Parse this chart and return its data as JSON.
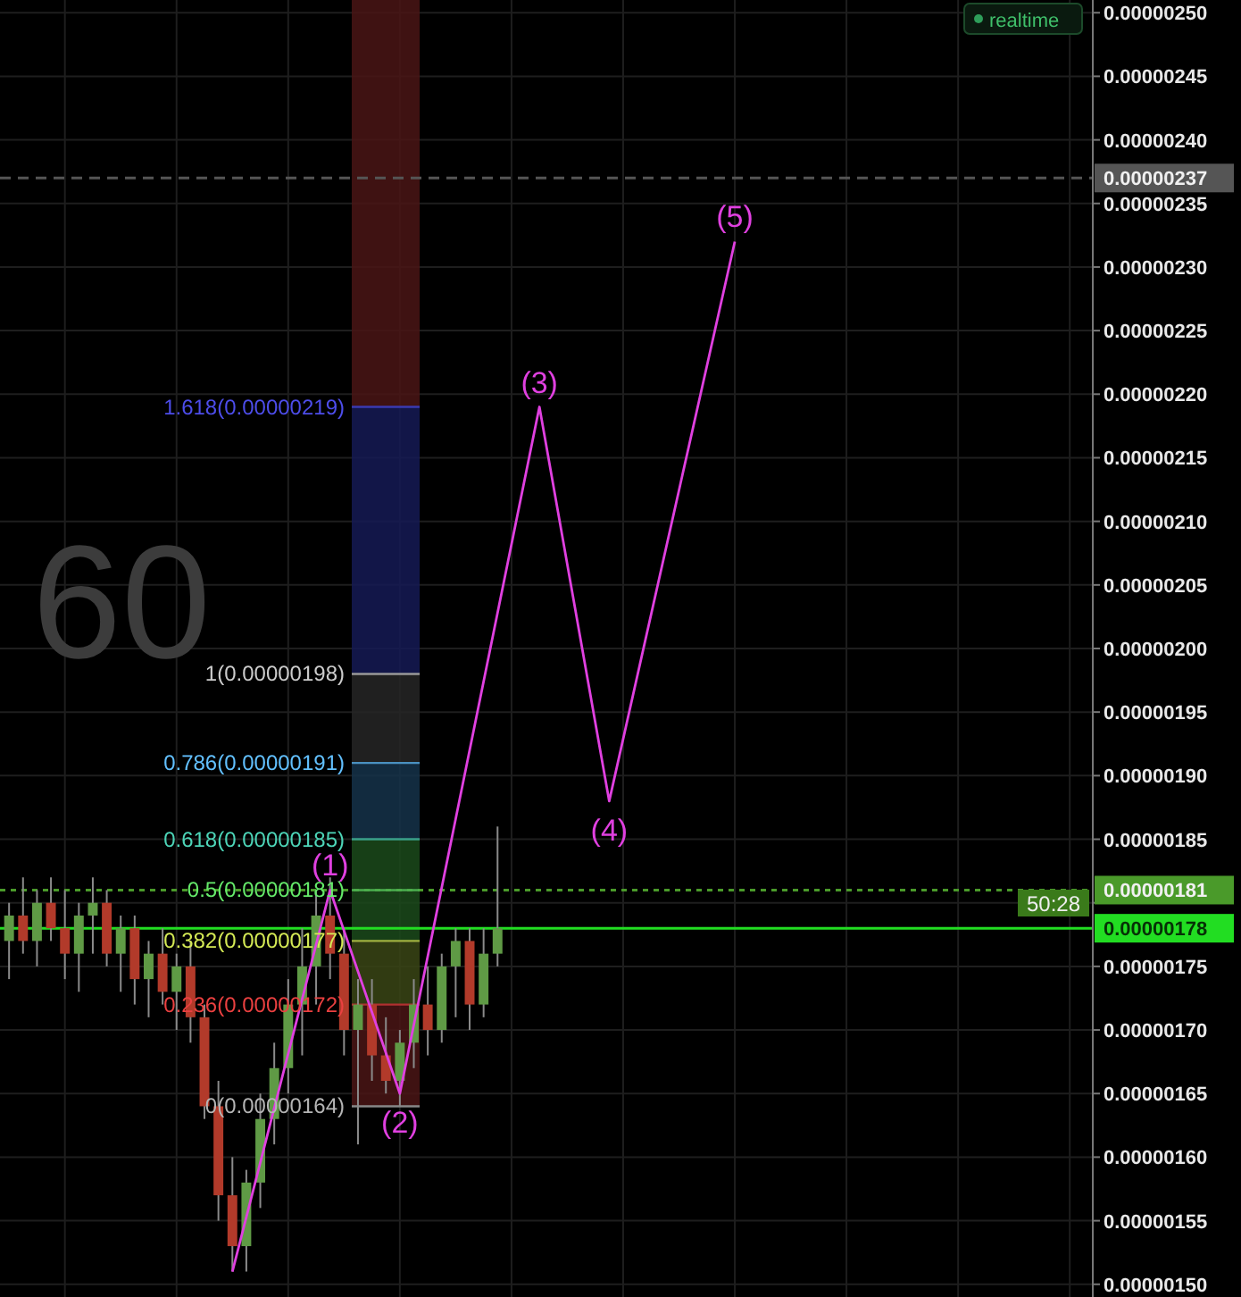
{
  "chart_data": {
    "type": "candlestick",
    "categories": [
      null,
      null,
      null,
      null,
      null,
      null,
      null,
      null,
      null,
      null,
      null,
      null,
      null,
      null,
      null,
      null,
      null,
      null,
      null,
      null,
      null,
      null,
      null,
      null,
      null,
      null,
      null,
      null,
      null,
      null,
      null,
      null,
      null,
      null,
      null,
      null,
      null,
      null,
      null,
      null,
      null,
      null,
      null,
      null,
      null,
      null,
      null,
      null,
      null,
      null,
      null,
      null,
      null,
      null,
      null,
      null,
      null,
      null,
      null,
      null,
      null,
      null,
      null,
      null,
      null,
      null,
      null,
      null,
      null,
      null,
      null,
      null,
      null,
      null,
      null,
      null,
      null,
      null
    ],
    "ohlc": [
      [
        1.77e-06,
        1.8e-06,
        1.74e-06,
        1.79e-06
      ],
      [
        1.79e-06,
        1.82e-06,
        1.76e-06,
        1.77e-06
      ],
      [
        1.77e-06,
        1.81e-06,
        1.75e-06,
        1.8e-06
      ],
      [
        1.8e-06,
        1.82e-06,
        1.77e-06,
        1.78e-06
      ],
      [
        1.78e-06,
        1.81e-06,
        1.74e-06,
        1.76e-06
      ],
      [
        1.76e-06,
        1.8e-06,
        1.73e-06,
        1.79e-06
      ],
      [
        1.79e-06,
        1.82e-06,
        1.76e-06,
        1.8e-06
      ],
      [
        1.8e-06,
        1.81e-06,
        1.75e-06,
        1.76e-06
      ],
      [
        1.76e-06,
        1.79e-06,
        1.73e-06,
        1.78e-06
      ],
      [
        1.78e-06,
        1.79e-06,
        1.72e-06,
        1.74e-06
      ],
      [
        1.74e-06,
        1.77e-06,
        1.71e-06,
        1.76e-06
      ],
      [
        1.76e-06,
        1.78e-06,
        1.72e-06,
        1.73e-06
      ],
      [
        1.73e-06,
        1.76e-06,
        1.7e-06,
        1.75e-06
      ],
      [
        1.75e-06,
        1.77e-06,
        1.69e-06,
        1.71e-06
      ],
      [
        1.71e-06,
        1.72e-06,
        1.63e-06,
        1.64e-06
      ],
      [
        1.64e-06,
        1.66e-06,
        1.55e-06,
        1.57e-06
      ],
      [
        1.57e-06,
        1.6e-06,
        1.51e-06,
        1.53e-06
      ],
      [
        1.53e-06,
        1.59e-06,
        1.51e-06,
        1.58e-06
      ],
      [
        1.58e-06,
        1.65e-06,
        1.56e-06,
        1.63e-06
      ],
      [
        1.63e-06,
        1.69e-06,
        1.61e-06,
        1.67e-06
      ],
      [
        1.67e-06,
        1.74e-06,
        1.65e-06,
        1.72e-06
      ],
      [
        1.72e-06,
        1.78e-06,
        1.68e-06,
        1.75e-06
      ],
      [
        1.75e-06,
        1.81e-06,
        1.72e-06,
        1.79e-06
      ],
      [
        1.79e-06,
        1.82e-06,
        1.74e-06,
        1.76e-06
      ],
      [
        1.76e-06,
        1.78e-06,
        1.68e-06,
        1.7e-06
      ],
      [
        1.7e-06,
        1.74e-06,
        1.61e-06,
        1.72e-06
      ],
      [
        1.72e-06,
        1.74e-06,
        1.66e-06,
        1.68e-06
      ],
      [
        1.68e-06,
        1.71e-06,
        1.65e-06,
        1.66e-06
      ],
      [
        1.66e-06,
        1.7e-06,
        1.64e-06,
        1.69e-06
      ],
      [
        1.69e-06,
        1.74e-06,
        1.67e-06,
        1.72e-06
      ],
      [
        1.72e-06,
        1.75e-06,
        1.68e-06,
        1.7e-06
      ],
      [
        1.7e-06,
        1.76e-06,
        1.69e-06,
        1.75e-06
      ],
      [
        1.75e-06,
        1.78e-06,
        1.71e-06,
        1.77e-06
      ],
      [
        1.77e-06,
        1.78e-06,
        1.7e-06,
        1.72e-06
      ],
      [
        1.72e-06,
        1.78e-06,
        1.71e-06,
        1.76e-06
      ],
      [
        1.76e-06,
        1.86e-06,
        1.75e-06,
        1.78e-06
      ],
      null,
      null,
      null,
      null,
      null,
      null,
      null,
      null,
      null,
      null,
      null,
      null,
      null,
      null,
      null,
      null,
      null,
      null,
      null,
      null,
      null,
      null,
      null,
      null,
      null,
      null,
      null,
      null,
      null,
      null,
      null,
      null,
      null,
      null,
      null,
      null,
      null,
      null,
      null,
      null,
      null,
      null
    ],
    "series": [
      {
        "type": "line",
        "color": "#e040e0",
        "values": [
          null,
          null,
          null,
          null,
          null,
          null,
          null,
          null,
          null,
          null,
          null,
          null,
          null,
          null,
          null,
          null,
          1.51e-06,
          null,
          null,
          null,
          null,
          null,
          null,
          1.81e-06,
          null,
          null,
          null,
          null,
          1.65e-06,
          null,
          null,
          null,
          null,
          null,
          null,
          null,
          null,
          null,
          2.19e-06,
          null,
          null,
          null,
          null,
          1.88e-06,
          null,
          null,
          null,
          null,
          null,
          null,
          null,
          null,
          2.32e-06,
          null,
          null,
          null,
          null,
          null,
          null,
          null,
          null,
          null,
          null,
          null,
          null,
          null,
          null,
          null,
          null,
          null,
          null,
          null,
          null,
          null,
          null,
          null,
          null,
          null
        ]
      }
    ],
    "ylim": [
      1.49e-06,
      2.51e-06
    ],
    "yticks": [
      {
        "value": 1.5e-06,
        "label": "0.00000150"
      },
      {
        "value": 1.55e-06,
        "label": "0.00000155"
      },
      {
        "value": 1.6e-06,
        "label": "0.00000160"
      },
      {
        "value": 1.65e-06,
        "label": "0.00000165"
      },
      {
        "value": 1.7e-06,
        "label": "0.00000170"
      },
      {
        "value": 1.75e-06,
        "label": "0.00000175"
      },
      {
        "value": 1.8e-06,
        "label": null
      },
      {
        "value": 1.85e-06,
        "label": "0.00000185"
      },
      {
        "value": 1.9e-06,
        "label": "0.00000190"
      },
      {
        "value": 1.95e-06,
        "label": "0.00000195"
      },
      {
        "value": 2e-06,
        "label": "0.00000200"
      },
      {
        "value": 2.05e-06,
        "label": "0.00000205"
      },
      {
        "value": 2.1e-06,
        "label": "0.00000210"
      },
      {
        "value": 2.15e-06,
        "label": "0.00000215"
      },
      {
        "value": 2.2e-06,
        "label": "0.00000220"
      },
      {
        "value": 2.25e-06,
        "label": "0.00000225"
      },
      {
        "value": 2.3e-06,
        "label": "0.00000230"
      },
      {
        "value": 2.35e-06,
        "label": "0.00000235"
      },
      {
        "value": 2.4e-06,
        "label": "0.00000240"
      },
      {
        "value": 2.45e-06,
        "label": "0.00000245"
      },
      {
        "value": 2.5e-06,
        "label": "0.00000250"
      }
    ],
    "grid": true,
    "bands": [
      {
        "axis": "y",
        "from": 2.19e-06,
        "to": 2.51e-06,
        "color": "#4a1515"
      },
      {
        "axis": "y",
        "from": 1.98e-06,
        "to": 2.19e-06,
        "color": "#151a55"
      },
      {
        "axis": "y",
        "from": 1.91e-06,
        "to": 1.98e-06,
        "color": "#262626"
      },
      {
        "axis": "y",
        "from": 1.85e-06,
        "to": 1.91e-06,
        "color": "#15334a"
      },
      {
        "axis": "y",
        "from": 1.77e-06,
        "to": 1.85e-06,
        "color": "#1b4a1b"
      },
      {
        "axis": "y",
        "from": 1.72e-06,
        "to": 1.77e-06,
        "color": "#3a4515"
      },
      {
        "axis": "y",
        "from": 1.64e-06,
        "to": 1.72e-06,
        "color": "#4a1515"
      }
    ],
    "ref_lines": [
      {
        "axis": "y",
        "value": 2.37e-06,
        "label": "0.00000237",
        "color": "#555555",
        "line_style": "dashed"
      },
      {
        "axis": "y",
        "value": 1.81e-06,
        "label": "0.00000181",
        "color": "#4a9a2a",
        "line_style": "dotted"
      },
      {
        "axis": "y",
        "value": 1.78e-06,
        "label": "0.00000178",
        "color": "#22dd22",
        "line_style": "solid"
      },
      {
        "axis": "y",
        "value": 2.19e-06,
        "label": "1.618(0.00000219)",
        "color": "#3a3ab0"
      },
      {
        "axis": "y",
        "value": 1.98e-06,
        "label": "1(0.00000198)",
        "color": "#999999"
      },
      {
        "axis": "y",
        "value": 1.91e-06,
        "label": "0.786(0.00000191)",
        "color": "#4a90c0"
      },
      {
        "axis": "y",
        "value": 1.85e-06,
        "label": "0.618(0.00000185)",
        "color": "#3aa08a"
      },
      {
        "axis": "y",
        "value": 1.81e-06,
        "label": "0.5(0.00000181)",
        "color": "#4caf50"
      },
      {
        "axis": "y",
        "value": 1.77e-06,
        "label": "0.382(0.00000177)",
        "color": "#a0b040"
      },
      {
        "axis": "y",
        "value": 1.72e-06,
        "label": "0.236(0.00000172)",
        "color": "#b03030"
      },
      {
        "axis": "y",
        "value": 1.64e-06,
        "label": "0(0.00000164)",
        "color": "#888888"
      }
    ],
    "annotations": [
      "60",
      "realtime",
      "50:28",
      {
        "text": "(1)",
        "y": 1.81e-06
      },
      {
        "text": "(2)",
        "y": 1.65e-06
      },
      {
        "text": "(3)",
        "y": 2.19e-06
      },
      {
        "text": "(4)",
        "y": 1.88e-06
      },
      {
        "text": "(5)",
        "y": 2.32e-06
      }
    ]
  }
}
